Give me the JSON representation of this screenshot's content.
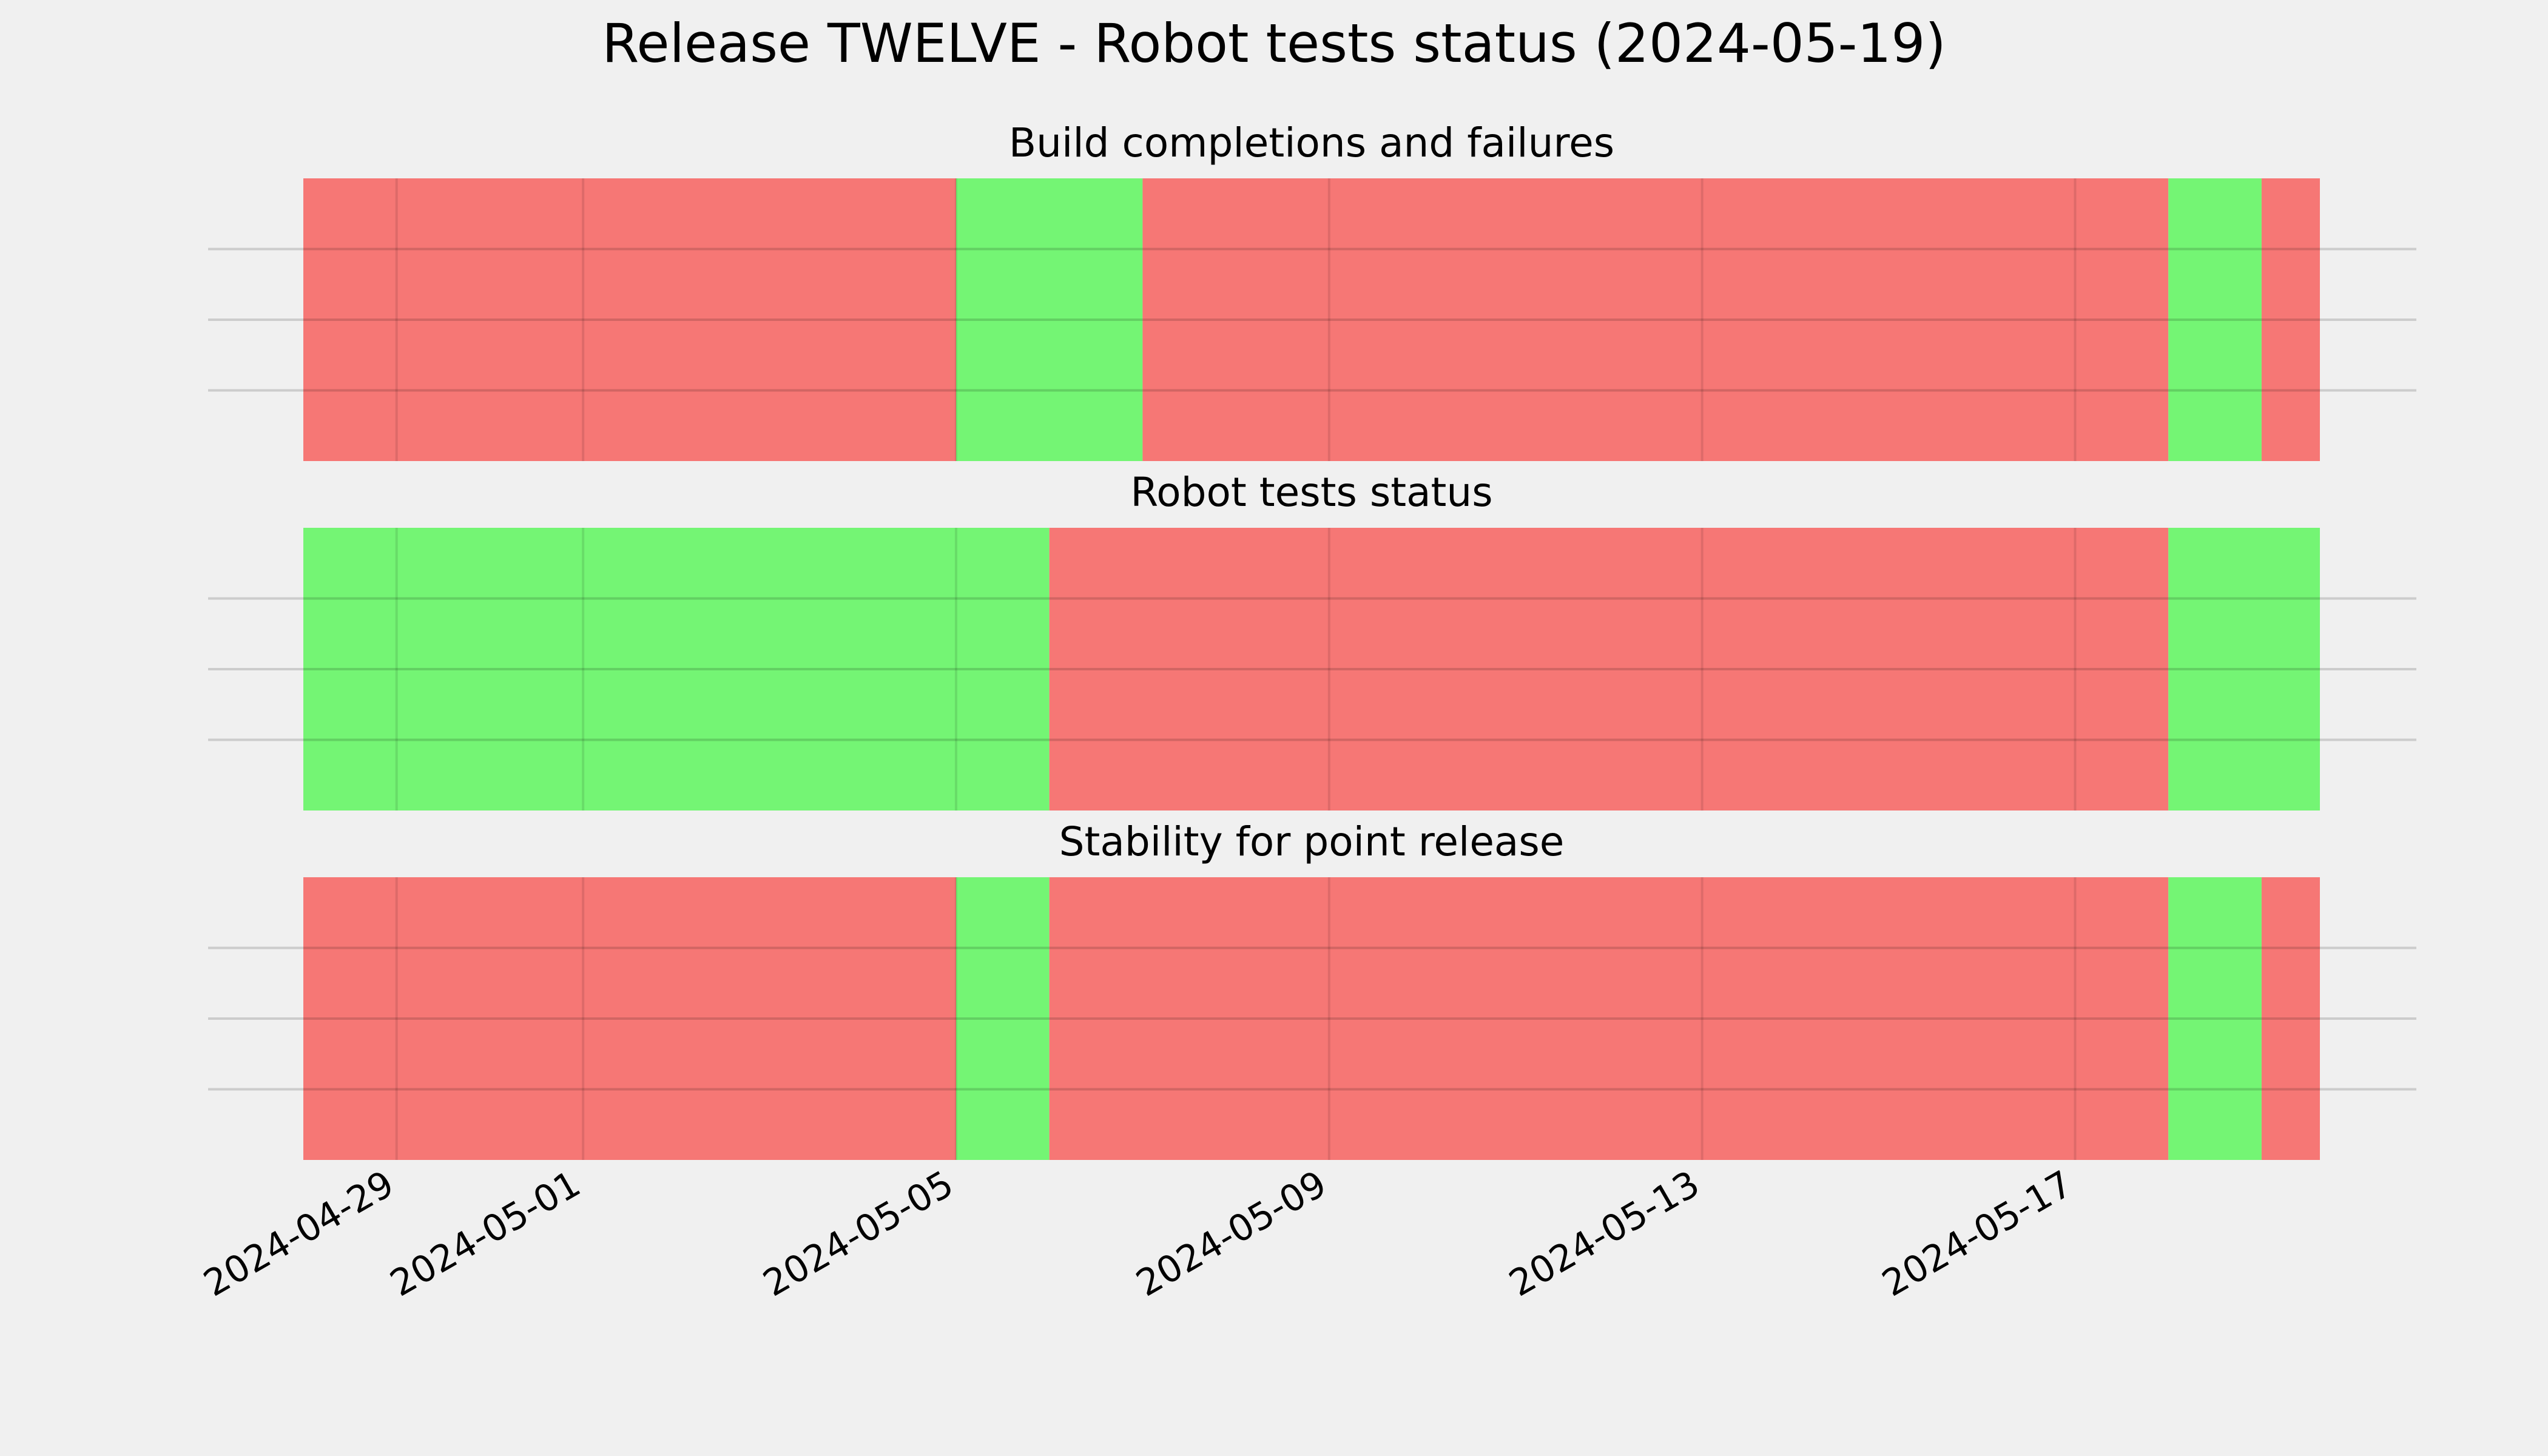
{
  "chart_data": {
    "type": "timeline",
    "title": "Release TWELVE - Robot tests status (2024-05-19)",
    "x_range": [
      "2024-04-28",
      "2024-05-19 15:00"
    ],
    "x_ticks": [
      "2024-04-29",
      "2024-05-01",
      "2024-05-05",
      "2024-05-09",
      "2024-05-13",
      "2024-05-17"
    ],
    "colors": {
      "pass": "#74f574",
      "fail": "#f67775",
      "background": "#f0f0f0"
    },
    "grid": true,
    "panels": [
      {
        "title": "Build completions and failures",
        "segments": [
          {
            "start": "2024-04-28",
            "end": "2024-05-05",
            "status": "fail"
          },
          {
            "start": "2024-05-05",
            "end": "2024-05-07",
            "status": "pass"
          },
          {
            "start": "2024-05-07",
            "end": "2024-05-18",
            "status": "fail"
          },
          {
            "start": "2024-05-18",
            "end": "2024-05-19",
            "status": "pass"
          },
          {
            "start": "2024-05-19",
            "end": "2024-05-19 15:00",
            "status": "fail"
          }
        ]
      },
      {
        "title": "Robot tests status",
        "segments": [
          {
            "start": "2024-04-28",
            "end": "2024-05-06",
            "status": "pass"
          },
          {
            "start": "2024-05-06",
            "end": "2024-05-18",
            "status": "fail"
          },
          {
            "start": "2024-05-18",
            "end": "2024-05-19 15:00",
            "status": "pass"
          }
        ]
      },
      {
        "title": "Stability for point release",
        "segments": [
          {
            "start": "2024-04-28",
            "end": "2024-05-05",
            "status": "fail"
          },
          {
            "start": "2024-05-05",
            "end": "2024-05-06",
            "status": "pass"
          },
          {
            "start": "2024-05-06",
            "end": "2024-05-18",
            "status": "fail"
          },
          {
            "start": "2024-05-18",
            "end": "2024-05-19",
            "status": "pass"
          },
          {
            "start": "2024-05-19",
            "end": "2024-05-19 15:00",
            "status": "fail"
          }
        ]
      }
    ]
  }
}
